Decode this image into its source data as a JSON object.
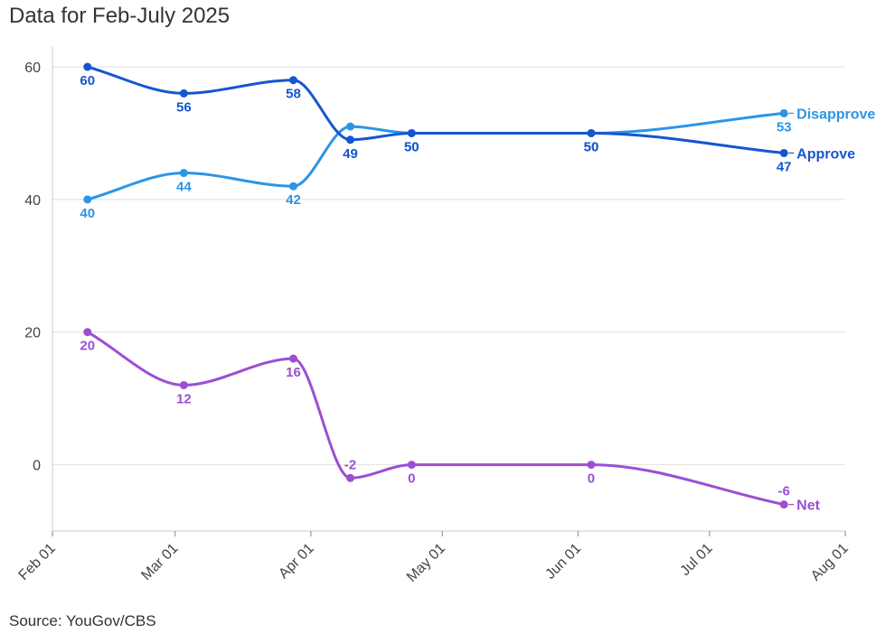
{
  "title": "Data for Feb-July 2025",
  "source": "Source: YouGov/CBS",
  "chart_data": {
    "type": "line",
    "title": "Data for Feb-July 2025",
    "xlabel": "",
    "ylabel": "",
    "x_ticks": [
      "Feb 01",
      "Mar 01",
      "Apr 01",
      "May 01",
      "Jun 01",
      "Jul 01",
      "Aug 01"
    ],
    "x_tick_dates": [
      "2025-02-01",
      "2025-03-01",
      "2025-04-01",
      "2025-05-01",
      "2025-06-01",
      "2025-07-01",
      "2025-08-01"
    ],
    "xlim": [
      "2025-02-01",
      "2025-08-01"
    ],
    "y_ticks": [
      0,
      20,
      40,
      60
    ],
    "ylim": [
      -10,
      63
    ],
    "grid": true,
    "legend": "inline labels at line ends",
    "series": [
      {
        "name": "Disapprove",
        "color": "#2b95e6",
        "x": [
          "2025-02-09",
          "2025-03-03",
          "2025-03-28",
          "2025-04-10",
          "2025-04-24",
          "2025-06-04",
          "2025-07-18"
        ],
        "values": [
          40,
          44,
          42,
          51,
          50,
          50,
          53
        ],
        "labels": [
          "40",
          "44",
          "42",
          null,
          "50",
          "50",
          "53"
        ]
      },
      {
        "name": "Approve",
        "color": "#1556d0",
        "x": [
          "2025-02-09",
          "2025-03-03",
          "2025-03-28",
          "2025-04-10",
          "2025-04-24",
          "2025-06-04",
          "2025-07-18"
        ],
        "values": [
          60,
          56,
          58,
          49,
          50,
          50,
          47
        ],
        "labels": [
          "60",
          "56",
          "58",
          "49",
          "50",
          "50",
          "47"
        ]
      },
      {
        "name": "Net",
        "color": "#9b4fd4",
        "x": [
          "2025-02-09",
          "2025-03-03",
          "2025-03-28",
          "2025-04-10",
          "2025-04-24",
          "2025-06-04",
          "2025-07-18"
        ],
        "values": [
          20,
          12,
          16,
          -2,
          0,
          0,
          -6
        ],
        "labels": [
          "20",
          "12",
          "16",
          "-2",
          "0",
          "0",
          "-6"
        ]
      }
    ]
  }
}
